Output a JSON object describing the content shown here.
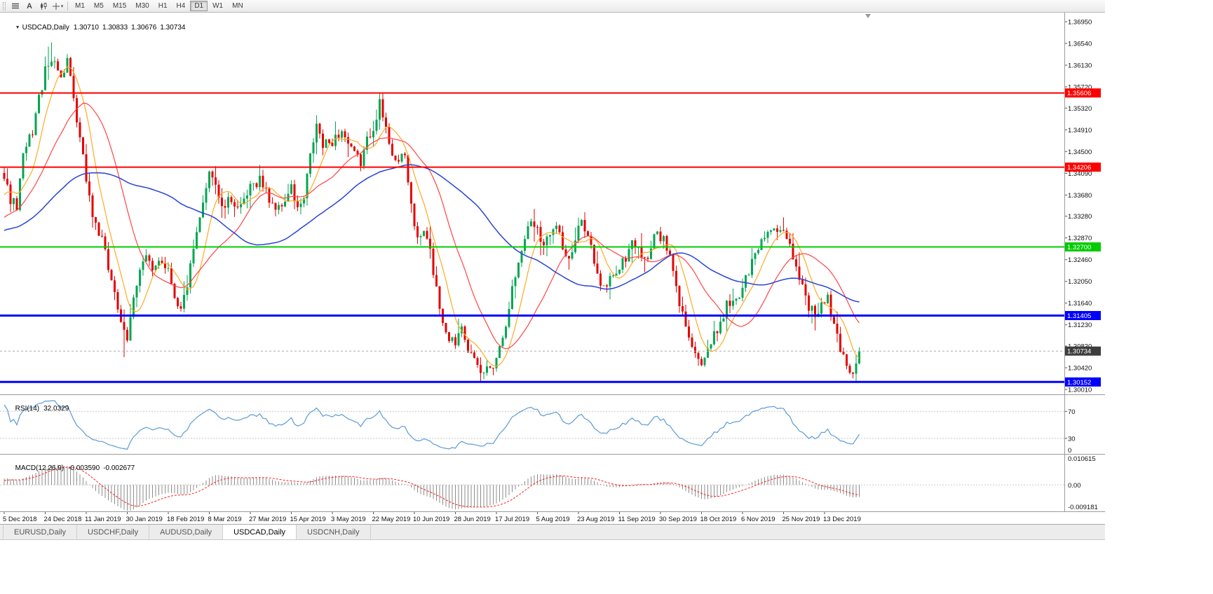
{
  "toolbar": {
    "text_tool_label": "A",
    "timeframes": [
      "M1",
      "M5",
      "M15",
      "M30",
      "H1",
      "H4",
      "D1",
      "W1",
      "MN"
    ],
    "active_timeframe": "D1"
  },
  "chart_header": {
    "collapse_arrow": "▼",
    "symbol": "USDCAD,Daily",
    "open": "1.30710",
    "high": "1.30833",
    "low": "1.30676",
    "close": "1.30734"
  },
  "price_axis": {
    "max": 1.3695,
    "min": 1.3001,
    "ticks": [
      "1.36950",
      "1.36540",
      "1.36130",
      "1.35720",
      "1.35320",
      "1.34910",
      "1.34500",
      "1.34090",
      "1.33680",
      "1.33280",
      "1.32870",
      "1.32460",
      "1.32050",
      "1.31640",
      "1.31230",
      "1.30830",
      "1.30420",
      "1.30010"
    ]
  },
  "hlines": [
    {
      "price": 1.35606,
      "label": "1.35606",
      "color": "#FF0000",
      "width": 2
    },
    {
      "price": 1.34206,
      "label": "1.34206",
      "color": "#FF0000",
      "width": 2
    },
    {
      "price": 1.327,
      "label": "1.32700",
      "color": "#00CC00",
      "width": 2
    },
    {
      "price": 1.31405,
      "label": "1.31405",
      "color": "#0000FF",
      "width": 3
    },
    {
      "price": 1.30152,
      "label": "1.30152",
      "color": "#0000FF",
      "width": 3
    }
  ],
  "current_price": {
    "price": 1.30734,
    "label": "1.30734",
    "badge_color": "#3D3D3D"
  },
  "rsi_panel": {
    "name": "RSI(14)",
    "value": "32.0329",
    "axis_labels": [
      "70",
      "30",
      "0"
    ],
    "levels": [
      70,
      30
    ],
    "line_color": "#5B9BD5"
  },
  "macd_panel": {
    "name": "MACD(12,26,9)",
    "main_value": "-0.003590",
    "signal_value": "-0.002677",
    "axis_labels": [
      "0.010615",
      "0.00",
      "-0.009181"
    ],
    "axis_max": 0.010615,
    "axis_min": -0.009181,
    "histogram_color": "#8C8C8C",
    "signal_color": "#FF2020"
  },
  "time_axis": {
    "candles_per_label": 13,
    "dates": [
      "5 Dec 2018",
      "24 Dec 2018",
      "11 Jan 2019",
      "30 Jan 2019",
      "18 Feb 2019",
      "8 Mar 2019",
      "27 Mar 2019",
      "15 Apr 2019",
      "3 May 2019",
      "22 May 2019",
      "10 Jun 2019",
      "28 Jun 2019",
      "17 Jul 2019",
      "5 Aug 2019",
      "23 Aug 2019",
      "11 Sep 2019",
      "30 Sep 2019",
      "18 Oct 2019",
      "6 Nov 2019",
      "25 Nov 2019",
      "13 Dec 2019"
    ]
  },
  "bottom_tabs": [
    {
      "label": "EURUSD,Daily",
      "active": false
    },
    {
      "label": "USDCHF,Daily",
      "active": false
    },
    {
      "label": "AUDUSD,Daily",
      "active": false
    },
    {
      "label": "USDCAD,Daily",
      "active": true
    },
    {
      "label": "USDCNH,Daily",
      "active": false
    }
  ],
  "chart_data": {
    "type": "candlestick",
    "symbol": "USDCAD",
    "timeframe": "Daily",
    "candle_count": 272,
    "last_close": 1.30734,
    "ylim": [
      1.3001,
      1.3695
    ],
    "colors": {
      "up": "#00A651",
      "down": "#E60000",
      "ma_fast": "#FFAA22",
      "ma_mid": "#FF4444",
      "ma_slow": "#2743D6"
    },
    "ma_periods": {
      "fast": 8,
      "mid": 21,
      "slow": 55
    },
    "pre_anchors": [
      [
        -60,
        1.33
      ],
      [
        -45,
        1.325
      ],
      [
        -30,
        1.332
      ],
      [
        -15,
        1.328
      ],
      [
        0,
        1.3395
      ]
    ],
    "close_anchors": [
      [
        0,
        1.34
      ],
      [
        2,
        1.336
      ],
      [
        4,
        1.3345
      ],
      [
        6,
        1.344
      ],
      [
        9,
        1.349
      ],
      [
        11,
        1.355
      ],
      [
        13,
        1.36
      ],
      [
        16,
        1.363
      ],
      [
        18,
        1.3585
      ],
      [
        20,
        1.3625
      ],
      [
        22,
        1.354
      ],
      [
        24,
        1.347
      ],
      [
        26,
        1.34
      ],
      [
        28,
        1.333
      ],
      [
        31,
        1.328
      ],
      [
        33,
        1.323
      ],
      [
        35,
        1.319
      ],
      [
        37,
        1.312
      ],
      [
        39,
        1.309
      ],
      [
        41,
        1.318
      ],
      [
        43,
        1.323
      ],
      [
        45,
        1.325
      ],
      [
        47,
        1.322
      ],
      [
        49,
        1.325
      ],
      [
        52,
        1.323
      ],
      [
        54,
        1.318
      ],
      [
        56,
        1.315
      ],
      [
        58,
        1.32
      ],
      [
        60,
        1.326
      ],
      [
        63,
        1.335
      ],
      [
        65,
        1.342
      ],
      [
        67,
        1.339
      ],
      [
        69,
        1.334
      ],
      [
        72,
        1.336
      ],
      [
        75,
        1.334
      ],
      [
        78,
        1.338
      ],
      [
        81,
        1.34
      ],
      [
        84,
        1.336
      ],
      [
        87,
        1.334
      ],
      [
        89,
        1.336
      ],
      [
        91,
        1.338
      ],
      [
        93,
        1.334
      ],
      [
        95,
        1.336
      ],
      [
        97,
        1.344
      ],
      [
        99,
        1.35
      ],
      [
        101,
        1.346
      ],
      [
        104,
        1.347
      ],
      [
        107,
        1.349
      ],
      [
        110,
        1.345
      ],
      [
        113,
        1.343
      ],
      [
        115,
        1.347
      ],
      [
        117,
        1.35
      ],
      [
        119,
        1.354
      ],
      [
        121,
        1.349
      ],
      [
        123,
        1.345
      ],
      [
        125,
        1.343
      ],
      [
        127,
        1.344
      ],
      [
        129,
        1.335
      ],
      [
        131,
        1.328
      ],
      [
        133,
        1.33
      ],
      [
        135,
        1.326
      ],
      [
        137,
        1.319
      ],
      [
        139,
        1.313
      ],
      [
        141,
        1.31
      ],
      [
        143,
        1.309
      ],
      [
        145,
        1.313
      ],
      [
        147,
        1.308
      ],
      [
        149,
        1.305
      ],
      [
        151,
        1.303
      ],
      [
        153,
        1.304
      ],
      [
        155,
        1.305
      ],
      [
        157,
        1.308
      ],
      [
        159,
        1.313
      ],
      [
        161,
        1.319
      ],
      [
        163,
        1.324
      ],
      [
        165,
        1.329
      ],
      [
        167,
        1.332
      ],
      [
        169,
        1.331
      ],
      [
        171,
        1.327
      ],
      [
        173,
        1.33
      ],
      [
        175,
        1.332
      ],
      [
        177,
        1.327
      ],
      [
        179,
        1.324
      ],
      [
        181,
        1.328
      ],
      [
        183,
        1.332
      ],
      [
        185,
        1.33
      ],
      [
        187,
        1.324
      ],
      [
        189,
        1.319
      ],
      [
        191,
        1.32
      ],
      [
        193,
        1.322
      ],
      [
        195,
        1.323
      ],
      [
        197,
        1.325
      ],
      [
        199,
        1.328
      ],
      [
        201,
        1.327
      ],
      [
        203,
        1.324
      ],
      [
        205,
        1.327
      ],
      [
        207,
        1.33
      ],
      [
        209,
        1.328
      ],
      [
        211,
        1.325
      ],
      [
        213,
        1.319
      ],
      [
        215,
        1.314
      ],
      [
        217,
        1.311
      ],
      [
        219,
        1.307
      ],
      [
        221,
        1.305
      ],
      [
        223,
        1.307
      ],
      [
        225,
        1.31
      ],
      [
        227,
        1.313
      ],
      [
        229,
        1.316
      ],
      [
        231,
        1.317
      ],
      [
        233,
        1.318
      ],
      [
        235,
        1.321
      ],
      [
        237,
        1.324
      ],
      [
        239,
        1.327
      ],
      [
        241,
        1.329
      ],
      [
        243,
        1.331
      ],
      [
        245,
        1.33
      ],
      [
        247,
        1.329
      ],
      [
        249,
        1.327
      ],
      [
        251,
        1.323
      ],
      [
        253,
        1.32
      ],
      [
        255,
        1.316
      ],
      [
        257,
        1.314
      ],
      [
        259,
        1.316
      ],
      [
        261,
        1.317
      ],
      [
        263,
        1.312
      ],
      [
        265,
        1.308
      ],
      [
        267,
        1.305
      ],
      [
        269,
        1.303
      ],
      [
        270,
        1.305
      ],
      [
        271,
        1.30734
      ]
    ],
    "spikes": [
      {
        "i": 14,
        "high": 1.3648
      },
      {
        "i": 15,
        "high": 1.3656
      },
      {
        "i": 119,
        "high": 1.3561
      },
      {
        "i": 38,
        "low": 1.3062
      },
      {
        "i": 151,
        "low": 1.3016
      },
      {
        "i": 152,
        "low": 1.302
      },
      {
        "i": 269,
        "low": 1.3022
      }
    ]
  }
}
